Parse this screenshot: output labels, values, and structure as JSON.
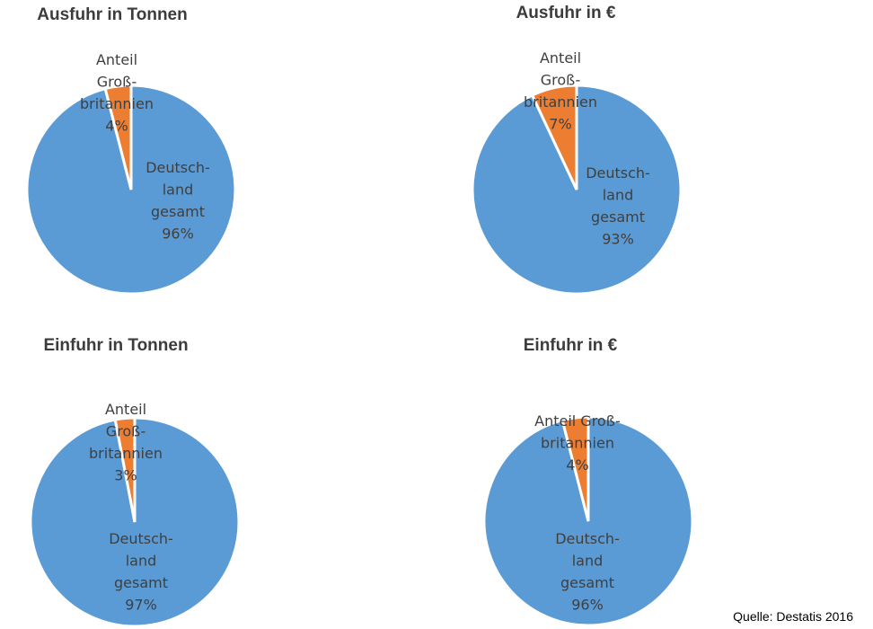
{
  "chart_data": [
    {
      "type": "pie",
      "title": "Ausfuhr in Tonnen",
      "slices": [
        {
          "label": "Deutschland gesamt",
          "label_lines": [
            "Deutsch-",
            "land",
            "gesamt"
          ],
          "value": 96,
          "value_text": "96%",
          "color": "#5b9bd5"
        },
        {
          "label": "Anteil Großbritannien",
          "label_lines": [
            "Anteil",
            "Groß-",
            "britannien"
          ],
          "value": 4,
          "value_text": "4%",
          "color": "#ed7d31"
        }
      ]
    },
    {
      "type": "pie",
      "title": "Ausfuhr in €",
      "slices": [
        {
          "label": "Deutschland gesamt",
          "label_lines": [
            "Deutsch-",
            "land",
            "gesamt"
          ],
          "value": 93,
          "value_text": "93%",
          "color": "#5b9bd5"
        },
        {
          "label": "Anteil Großbritannien",
          "label_lines": [
            "Anteil",
            "Groß-",
            "britannien"
          ],
          "value": 7,
          "value_text": "7%",
          "color": "#ed7d31"
        }
      ]
    },
    {
      "type": "pie",
      "title": "Einfuhr in Tonnen",
      "slices": [
        {
          "label": "Deutschland gesamt",
          "label_lines": [
            "Deutsch-",
            "land",
            "gesamt"
          ],
          "value": 97,
          "value_text": "97%",
          "color": "#5b9bd5"
        },
        {
          "label": "Anteil Großbritannien",
          "label_lines": [
            "Anteil",
            "Groß-",
            "britannien"
          ],
          "value": 3,
          "value_text": "3%",
          "color": "#ed7d31"
        }
      ]
    },
    {
      "type": "pie",
      "title": "Einfuhr in €",
      "slices": [
        {
          "label": "Deutschland gesamt",
          "label_lines": [
            "Deutsch-",
            "land",
            "gesamt"
          ],
          "value": 96,
          "value_text": "96%",
          "color": "#5b9bd5"
        },
        {
          "label": "Anteil Großbritannien",
          "label_lines": [
            "Anteil Groß-",
            "britannien"
          ],
          "value": 4,
          "value_text": "4%",
          "color": "#ed7d31"
        }
      ]
    }
  ],
  "source": "Quelle: Destatis 2016"
}
